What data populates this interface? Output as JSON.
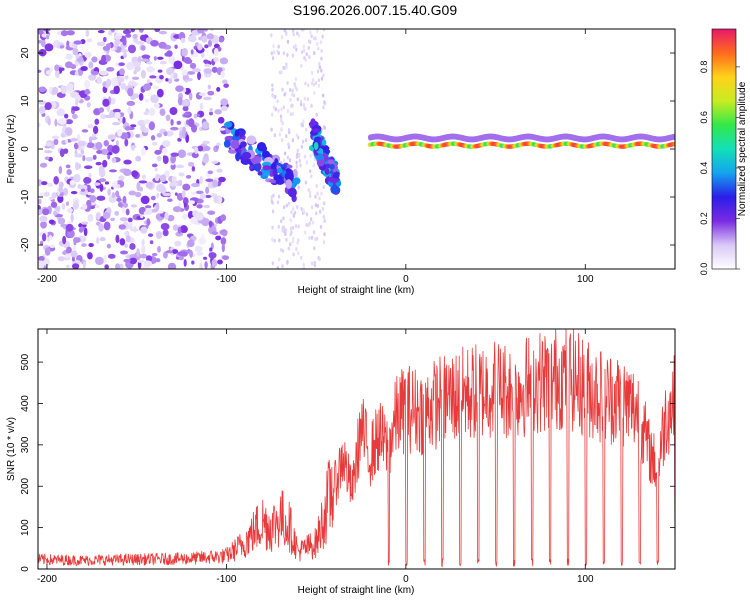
{
  "title": "S196.2026.007.15.40.G09",
  "colors": {
    "snr_line": "#e83a3a",
    "axes": "#000000",
    "colorbar_stops": [
      "#ffffff",
      "#d9c9f7",
      "#7a2be2",
      "#2a1ee8",
      "#14a3f0",
      "#12e0b8",
      "#33e84a",
      "#c8ec22",
      "#ffd21a",
      "#ff6a1e",
      "#e8186a"
    ]
  },
  "chart_data": [
    {
      "type": "heatmap",
      "name": "spectrogram",
      "xlabel": "Height of straight line (km)",
      "ylabel": "Frequency (Hz)",
      "xlim": [
        -205,
        150
      ],
      "ylim": [
        -25,
        25
      ],
      "xticks": [
        -200,
        -100,
        0,
        100
      ],
      "yticks": [
        -20,
        -10,
        0,
        10,
        20
      ],
      "colorbar": {
        "label": "Normalized spectral amplitude",
        "ticks": [
          0.0,
          0.2,
          0.4,
          0.6,
          0.8
        ],
        "range": [
          0,
          0.95
        ]
      },
      "features": [
        {
          "description": "diffuse noise",
          "x_range": [
            -205,
            -100
          ],
          "amplitude": 0.1
        },
        {
          "description": "descending trace",
          "x_start": -100,
          "x_end": -60,
          "freq_start": 3,
          "freq_end": -8,
          "amplitude": 0.25
        },
        {
          "description": "descending trace",
          "x_start": -52,
          "x_end": -38,
          "freq_start": 3,
          "freq_end": -7,
          "amplitude": 0.3
        },
        {
          "description": "carrier line",
          "x_start": -20,
          "x_end": 150,
          "freq": 0.8,
          "amplitude": 0.9
        }
      ]
    },
    {
      "type": "line",
      "name": "snr",
      "xlabel": "Height of straight line (km)",
      "ylabel": "SNR (10 * v/v)",
      "xlim": [
        -205,
        150
      ],
      "ylim": [
        0,
        580
      ],
      "xticks": [
        -200,
        -100,
        0,
        100
      ],
      "yticks": [
        0,
        100,
        200,
        300,
        400,
        500
      ],
      "series": [
        {
          "name": "SNR",
          "x": [
            -205,
            -180,
            -150,
            -120,
            -100,
            -90,
            -80,
            -75,
            -70,
            -65,
            -60,
            -50,
            -45,
            -40,
            -35,
            -30,
            -25,
            -20,
            -15,
            -10,
            -5,
            0,
            10,
            20,
            30,
            40,
            50,
            60,
            70,
            80,
            90,
            100,
            110,
            120,
            130,
            135,
            140,
            145,
            150
          ],
          "values": [
            22,
            20,
            22,
            24,
            30,
            60,
            110,
            95,
            120,
            100,
            40,
            60,
            130,
            200,
            280,
            190,
            350,
            280,
            330,
            300,
            380,
            400,
            390,
            420,
            430,
            440,
            450,
            440,
            460,
            470,
            480,
            450,
            430,
            420,
            390,
            300,
            250,
            380,
            420
          ]
        }
      ]
    }
  ]
}
